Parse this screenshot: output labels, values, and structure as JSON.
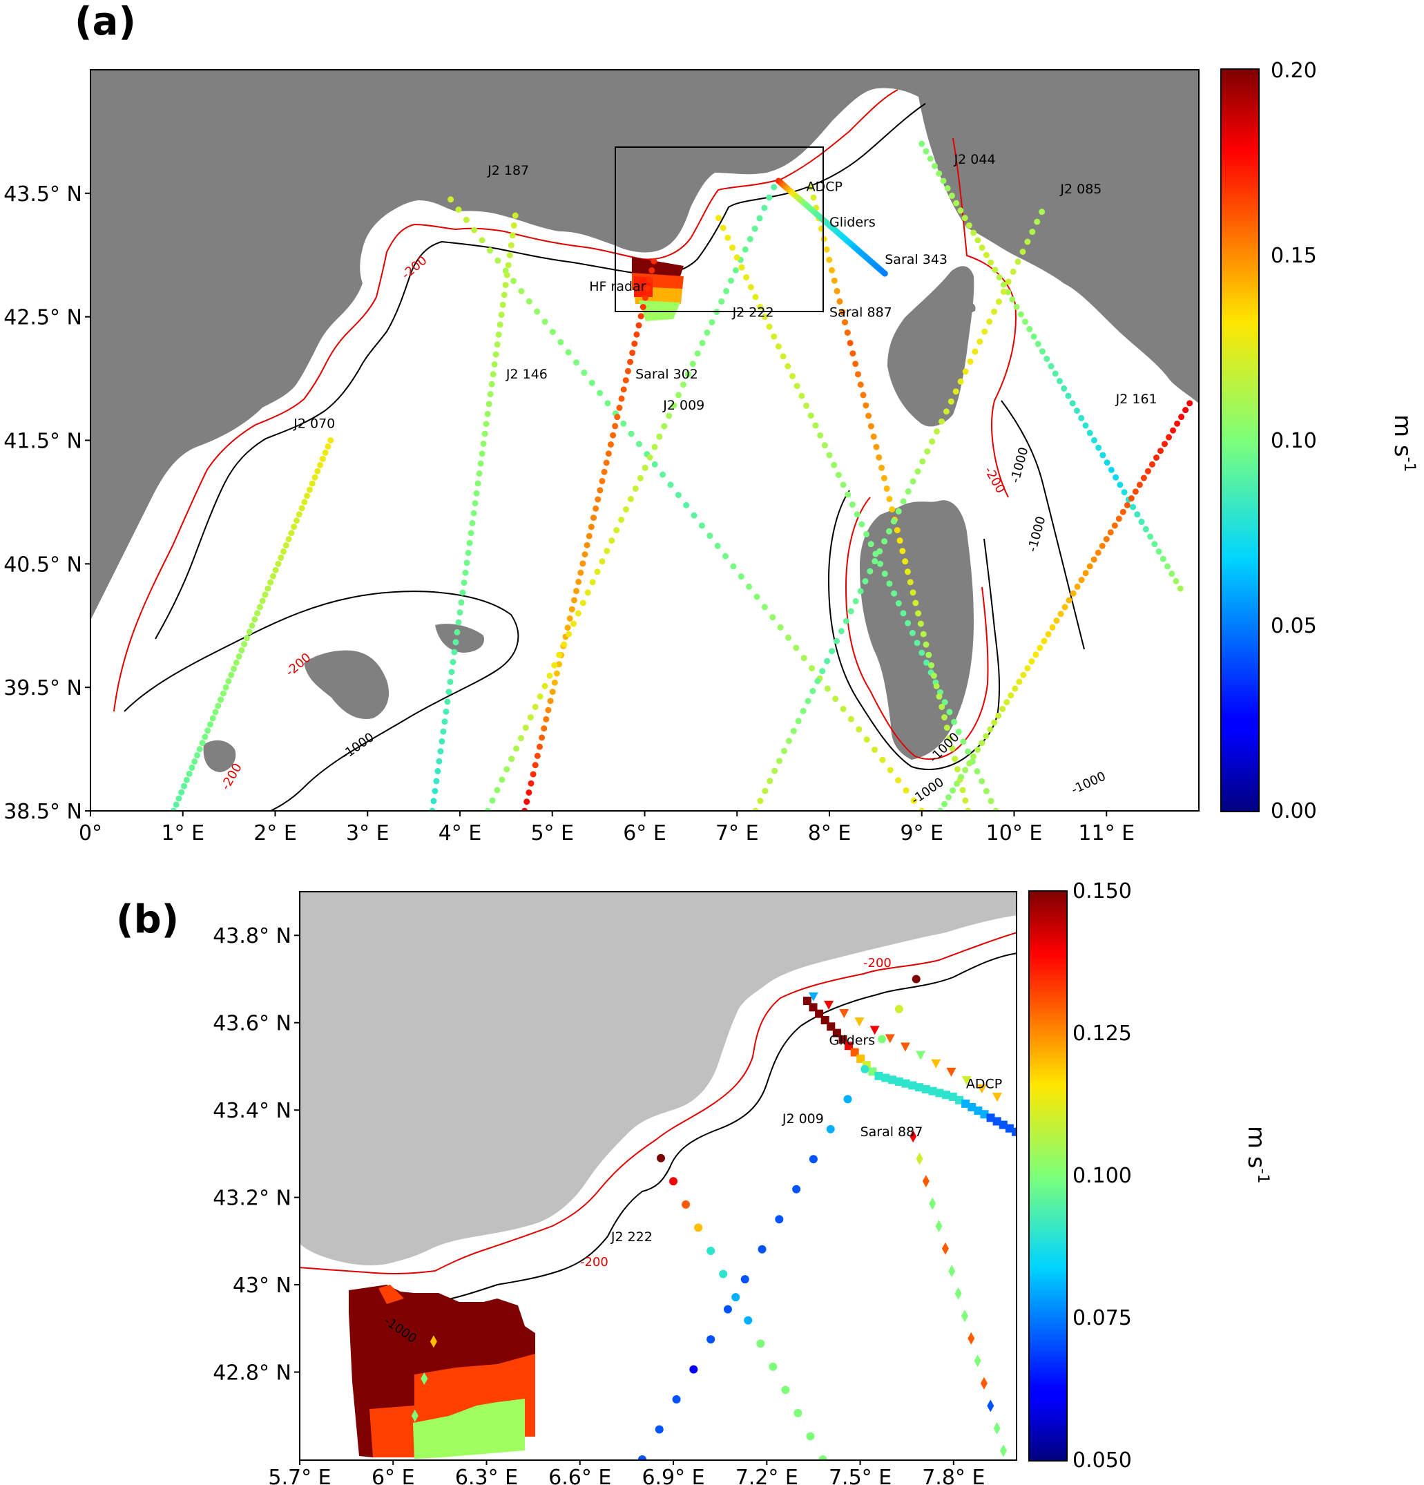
{
  "panel_a": {
    "label": "(a)",
    "lon_range": [
      0,
      12
    ],
    "lat_range": [
      38.5,
      44.5
    ],
    "x_ticks": [
      "0°",
      "1° E",
      "2° E",
      "3° E",
      "4° E",
      "5° E",
      "6° E",
      "7° E",
      "8° E",
      "9° E",
      "10° E",
      "11° E"
    ],
    "y_ticks": [
      "43.5° N",
      "42.5° N",
      "41.5° N",
      "40.5° N",
      "39.5° N",
      "38.5° N"
    ],
    "colorbar": {
      "min": 0.0,
      "max": 0.2,
      "ticks": [
        "0.20",
        "0.15",
        "0.10",
        "0.05",
        "0.00"
      ],
      "unit": "m s",
      "unit_sup": "-1"
    },
    "track_labels": [
      {
        "name": "J2 187",
        "lon": 4.3,
        "lat": 43.65
      },
      {
        "name": "J2 044",
        "lon": 9.35,
        "lat": 43.74
      },
      {
        "name": "J2 085",
        "lon": 10.5,
        "lat": 43.5
      },
      {
        "name": "ADCP",
        "lon": 7.75,
        "lat": 43.52
      },
      {
        "name": "Gliders",
        "lon": 8.0,
        "lat": 43.23
      },
      {
        "name": "Saral 343",
        "lon": 8.6,
        "lat": 42.93
      },
      {
        "name": "HF radar",
        "lon": 5.4,
        "lat": 42.71
      },
      {
        "name": "J2 222",
        "lon": 6.95,
        "lat": 42.5
      },
      {
        "name": "Saral 887",
        "lon": 8.0,
        "lat": 42.5
      },
      {
        "name": "J2 146",
        "lon": 4.5,
        "lat": 42.0
      },
      {
        "name": "Saral 302",
        "lon": 5.9,
        "lat": 42.0
      },
      {
        "name": "J2 009",
        "lon": 6.2,
        "lat": 41.75
      },
      {
        "name": "J2 161",
        "lon": 11.1,
        "lat": 41.8
      },
      {
        "name": "J2 070",
        "lon": 2.2,
        "lat": 41.6
      }
    ],
    "contour_labels": [
      "-200",
      "-200",
      "-200",
      "-1000",
      "-1000",
      "-200",
      "-1000",
      "-1000",
      "-1000",
      "-1000"
    ],
    "tracks": [
      {
        "name": "J2 070",
        "lon0": 0.9,
        "lat0": 38.5,
        "lon1": 2.6,
        "lat1": 41.5,
        "values": [
          0.09,
          0.1,
          0.11,
          0.12,
          0.13
        ]
      },
      {
        "name": "J2 187",
        "lon0": 3.9,
        "lat0": 43.45,
        "lon1": 9.0,
        "lat1": 38.5,
        "values": [
          0.12,
          0.1,
          0.09,
          0.11,
          0.13
        ]
      },
      {
        "name": "J2 146",
        "lon0": 4.6,
        "lat0": 43.32,
        "lon1": 3.7,
        "lat1": 38.5,
        "values": [
          0.12,
          0.11,
          0.1,
          0.09,
          0.08
        ]
      },
      {
        "name": "Saral 302",
        "lon0": 6.1,
        "lat0": 42.95,
        "lon1": 4.7,
        "lat1": 38.5,
        "values": [
          0.17,
          0.16,
          0.15,
          0.14,
          0.18
        ]
      },
      {
        "name": "J2 009",
        "lon0": 7.4,
        "lat0": 43.55,
        "lon1": 4.3,
        "lat1": 38.5,
        "values": [
          0.09,
          0.1,
          0.12,
          0.13,
          0.1
        ]
      },
      {
        "name": "J2 222",
        "lon0": 6.8,
        "lat0": 43.3,
        "lon1": 9.8,
        "lat1": 38.5,
        "values": [
          0.13,
          0.12,
          0.1,
          0.09,
          0.11
        ]
      },
      {
        "name": "Saral 887",
        "lon0": 7.8,
        "lat0": 43.55,
        "lon1": 9.5,
        "lat1": 38.5,
        "values": [
          0.12,
          0.16,
          0.14,
          0.11,
          0.12
        ]
      },
      {
        "name": "J2 044",
        "lon0": 9.0,
        "lat0": 43.9,
        "lon1": 11.8,
        "lat1": 40.3,
        "values": [
          0.1,
          0.12,
          0.09,
          0.07,
          0.11
        ]
      },
      {
        "name": "J2 085",
        "lon0": 10.3,
        "lat0": 43.35,
        "lon1": 7.2,
        "lat1": 38.5,
        "values": [
          0.11,
          0.13,
          0.1,
          0.09,
          0.12
        ]
      },
      {
        "name": "J2 161",
        "lon0": 11.9,
        "lat0": 41.8,
        "lon1": 9.2,
        "lat1": 38.5,
        "values": [
          0.18,
          0.16,
          0.14,
          0.12,
          0.1
        ]
      },
      {
        "name": "Gliders",
        "lon0": 7.45,
        "lat0": 43.6,
        "lon1": 8.6,
        "lat1": 42.85,
        "values": [
          0.17,
          0.1,
          0.08,
          0.06,
          0.05
        ]
      }
    ]
  },
  "panel_b": {
    "label": "(b)",
    "lon_range": [
      5.7,
      8.0
    ],
    "lat_range": [
      42.6,
      43.9
    ],
    "x_ticks": [
      "5.7° E",
      "6° E",
      "6.3° E",
      "6.6° E",
      "6.9° E",
      "7.2° E",
      "7.5° E",
      "7.8° E"
    ],
    "y_ticks": [
      "43.8° N",
      "43.6° N",
      "43.4° N",
      "43.2° N",
      "43° N",
      "42.8° N"
    ],
    "colorbar": {
      "min": 0.05,
      "max": 0.15,
      "ticks": [
        "0.150",
        "0.125",
        "0.100",
        "0.075",
        "0.050"
      ],
      "unit": "m s",
      "unit_sup": "-1"
    },
    "track_labels": [
      {
        "name": "Gliders",
        "lon": 7.4,
        "lat": 43.55
      },
      {
        "name": "ADCP",
        "lon": 7.84,
        "lat": 43.45
      },
      {
        "name": "J2 009",
        "lon": 7.25,
        "lat": 43.37
      },
      {
        "name": "Saral 887",
        "lon": 7.5,
        "lat": 43.34
      },
      {
        "name": "J2 222",
        "lon": 6.7,
        "lat": 43.1
      }
    ],
    "contour_labels": [
      "-200",
      "-200",
      "-1000"
    ],
    "gliders": [
      0.15,
      0.15,
      0.15,
      0.15,
      0.15,
      0.15,
      0.15,
      0.14,
      0.13,
      0.12,
      0.11,
      0.1,
      0.09,
      0.09,
      0.09,
      0.09,
      0.09,
      0.09,
      0.09,
      0.09,
      0.09,
      0.09,
      0.09,
      0.09,
      0.09,
      0.08,
      0.08,
      0.08,
      0.08,
      0.07,
      0.07,
      0.07,
      0.07,
      0.07
    ],
    "adcp": [
      0.08,
      0.14,
      0.13,
      0.12,
      0.14,
      0.13,
      0.13,
      0.1,
      0.12,
      0.13,
      0.11,
      0.12,
      0.12
    ],
    "j2_222": [
      0.15,
      0.14,
      0.13,
      0.12,
      0.09,
      0.09,
      0.08,
      0.08,
      0.1,
      0.1,
      0.1,
      0.1,
      0.1,
      0.1
    ],
    "j2_009": [
      0.07,
      0.07,
      0.07,
      0.06,
      0.07,
      0.07,
      0.07,
      0.07,
      0.07,
      0.07,
      0.07,
      0.08,
      0.08,
      0.09,
      0.1,
      0.11,
      0.15
    ],
    "saral_887": [
      0.14,
      0.11,
      0.13,
      0.1,
      0.1,
      0.13,
      0.1,
      0.1,
      0.1,
      0.13,
      0.1,
      0.13,
      0.07,
      0.1,
      0.1
    ],
    "hf_saral": [
      0.12,
      0.1,
      0.1
    ]
  }
}
